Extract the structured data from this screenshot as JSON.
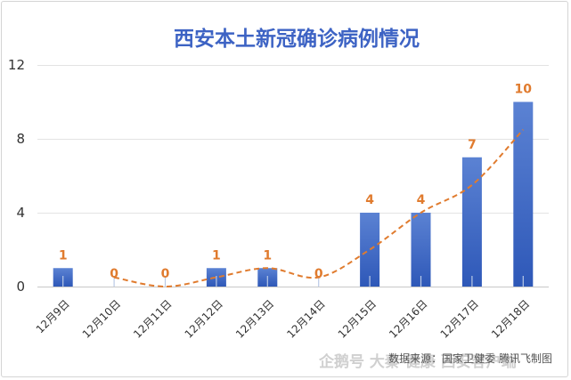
{
  "chart_data": {
    "type": "bar",
    "title": "西安本土新冠确诊病例情况",
    "categories": [
      "12月9日",
      "12月10日",
      "12月11日",
      "12月12日",
      "12月13日",
      "12月14日",
      "12月15日",
      "12月16日",
      "12月17日",
      "12月18日"
    ],
    "series": [
      {
        "values": [
          1,
          0,
          0,
          1,
          1,
          0,
          4,
          4,
          7,
          10
        ]
      }
    ],
    "trendline": {
      "type": "moving-average",
      "style": "dashed",
      "color": "#e07b2e"
    },
    "yticks": [
      "0",
      "4",
      "8",
      "12"
    ],
    "ylim": [
      0,
      12
    ],
    "grid": true,
    "legend": "none",
    "source": "数据来源：国家卫健委 腾讯飞制图",
    "colors": {
      "bar_top": "#5b82d3",
      "bar_bottom": "#2e58b8",
      "label": "#e07b2e",
      "trend": "#e07b2e",
      "title": "#3d63c4",
      "grid": "#e3e3e3"
    }
  },
  "watermark": "企鹅号 大秦 健康 西安客户端"
}
